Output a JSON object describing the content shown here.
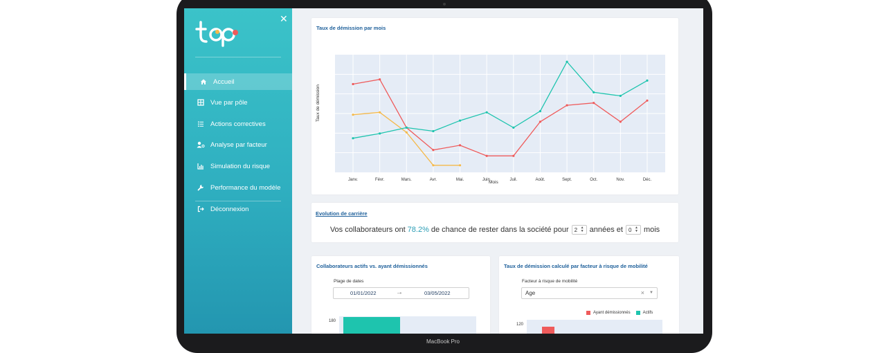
{
  "device": {
    "label": "MacBook Pro"
  },
  "sidebar": {
    "close_icon": "close-icon",
    "items": [
      {
        "label": "Accueil",
        "icon": "home-icon",
        "active": true
      },
      {
        "label": "Vue par pôle",
        "icon": "grid-icon"
      },
      {
        "label": "Actions correctives",
        "icon": "checklist-icon"
      },
      {
        "label": "Analyse par facteur",
        "icon": "user-gear-icon"
      },
      {
        "label": "Simulation du risque",
        "icon": "chart-icon"
      },
      {
        "label": "Performance du modèle",
        "icon": "wrench-icon"
      }
    ],
    "logout": {
      "label": "Déconnexion",
      "icon": "logout-icon"
    },
    "colors": {
      "top": "#3bc3c9",
      "bottom": "#2396b0"
    }
  },
  "chart1": {
    "title": "Taux de démission par mois",
    "ylabel": "Taux de démission",
    "xlabel": "Mois"
  },
  "chart_data": [
    {
      "type": "line",
      "title": "Taux de démission par mois",
      "xlabel": "Mois",
      "ylabel": "Taux de démission",
      "categories": [
        "Janv.",
        "Févr.",
        "Mars.",
        "Avr.",
        "Mai.",
        "Juin.",
        "Juil.",
        "Août.",
        "Sept.",
        "Oct.",
        "Nov.",
        "Déc."
      ],
      "ylim": [
        0,
        10
      ],
      "grid": true,
      "series": [
        {
          "color": "#ef5b5b",
          "values": [
            7.5,
            7.9,
            3.8,
            1.9,
            2.3,
            1.4,
            1.4,
            4.3,
            5.7,
            5.9,
            4.3,
            6.1
          ]
        },
        {
          "color": "#f5b94a",
          "values": [
            4.9,
            5.1,
            3.4,
            0.6,
            0.6,
            null,
            null,
            null,
            null,
            null,
            null,
            null
          ]
        },
        {
          "color": "#1ec4ae",
          "values": [
            2.9,
            3.3,
            3.8,
            3.5,
            4.4,
            5.1,
            3.8,
            5.2,
            9.4,
            6.8,
            6.5,
            7.8
          ]
        }
      ]
    },
    {
      "type": "bar",
      "title": "Collaborateurs actifs vs. ayant démissionnés",
      "yticks": [
        "180"
      ],
      "ylim": [
        0,
        200
      ],
      "series": [
        {
          "color": "#1ec4ae",
          "values": [
            178
          ]
        }
      ]
    },
    {
      "type": "bar",
      "title": "Taux de démission calculé par facteur à risque de mobilité",
      "yticks": [
        "120"
      ],
      "legend_position": "top-right",
      "series": [
        {
          "name": "Ayant démissionnés",
          "color": "#ef5b5b",
          "values": [
            120
          ]
        },
        {
          "name": "Actifs",
          "color": "#1ec4ae",
          "values": []
        }
      ]
    }
  ],
  "career": {
    "title": "Evolution de carrière",
    "prefix": "Vos collaborateurs ont",
    "percent": "78.2%",
    "middle": "de chance de rester dans la société pour",
    "years_value": "2",
    "years_label": "années et",
    "months_value": "0",
    "months_label": "mois"
  },
  "chart3": {
    "title": "Collaborateurs actifs vs. ayant démissionnés",
    "date_label": "Plage de dates",
    "start_date": "01/01/2022",
    "end_date": "03/05/2022",
    "ytick": "180"
  },
  "chart4": {
    "title": "Taux de démission calculé par facteur à risque de mobilité",
    "factor_label": "Facteur à risque de mobilité",
    "factor_value": "Age",
    "legend_resigned": "Ayant démissionnés",
    "legend_active": "Actifs",
    "ytick": "120"
  }
}
